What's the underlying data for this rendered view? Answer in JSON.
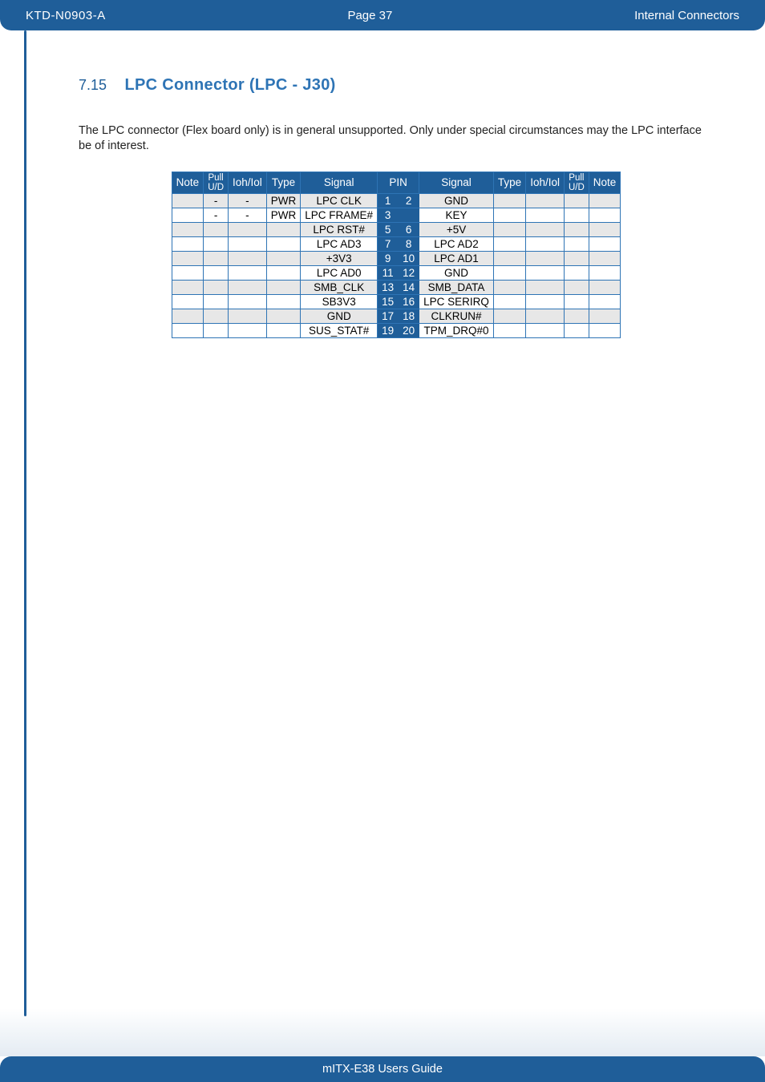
{
  "header": {
    "doc_id": "KTD-N0903-A",
    "page_label": "Page 37",
    "section_title": "Internal Connectors"
  },
  "section": {
    "number": "7.15",
    "title": "LPC Connector (LPC - J30)"
  },
  "body": {
    "text": "The LPC connector (Flex board only) is in general unsupported. Only under special circumstances may the LPC interface be of interest."
  },
  "table": {
    "headers": {
      "note_l": "Note",
      "pull_l_line1": "Pull",
      "pull_l_line2": "U/D",
      "iohiol_l": "Ioh/Iol",
      "type_l": "Type",
      "signal_l": "Signal",
      "pin": "PIN",
      "signal_r": "Signal",
      "type_r": "Type",
      "iohiol_r": "Ioh/Iol",
      "pull_r_line1": "Pull",
      "pull_r_line2": "U/D",
      "note_r": "Note"
    },
    "rows": [
      {
        "note_l": "",
        "pull_l": "-",
        "ioh_l": "-",
        "type_l": "PWR",
        "sig_l": "LPC CLK",
        "pin_l": "1",
        "pin_r": "2",
        "sig_r": "GND",
        "type_r": "",
        "ioh_r": "",
        "pull_r": "",
        "note_r": ""
      },
      {
        "note_l": "",
        "pull_l": "-",
        "ioh_l": "-",
        "type_l": "PWR",
        "sig_l": "LPC FRAME#",
        "pin_l": "3",
        "pin_r": "",
        "sig_r": "KEY",
        "type_r": "",
        "ioh_r": "",
        "pull_r": "",
        "note_r": ""
      },
      {
        "note_l": "",
        "pull_l": "",
        "ioh_l": "",
        "type_l": "",
        "sig_l": "LPC RST#",
        "pin_l": "5",
        "pin_r": "6",
        "sig_r": "+5V",
        "type_r": "",
        "ioh_r": "",
        "pull_r": "",
        "note_r": ""
      },
      {
        "note_l": "",
        "pull_l": "",
        "ioh_l": "",
        "type_l": "",
        "sig_l": "LPC AD3",
        "pin_l": "7",
        "pin_r": "8",
        "sig_r": "LPC AD2",
        "type_r": "",
        "ioh_r": "",
        "pull_r": "",
        "note_r": ""
      },
      {
        "note_l": "",
        "pull_l": "",
        "ioh_l": "",
        "type_l": "",
        "sig_l": "+3V3",
        "pin_l": "9",
        "pin_r": "10",
        "sig_r": "LPC AD1",
        "type_r": "",
        "ioh_r": "",
        "pull_r": "",
        "note_r": ""
      },
      {
        "note_l": "",
        "pull_l": "",
        "ioh_l": "",
        "type_l": "",
        "sig_l": "LPC AD0",
        "pin_l": "11",
        "pin_r": "12",
        "sig_r": "GND",
        "type_r": "",
        "ioh_r": "",
        "pull_r": "",
        "note_r": ""
      },
      {
        "note_l": "",
        "pull_l": "",
        "ioh_l": "",
        "type_l": "",
        "sig_l": "SMB_CLK",
        "pin_l": "13",
        "pin_r": "14",
        "sig_r": "SMB_DATA",
        "type_r": "",
        "ioh_r": "",
        "pull_r": "",
        "note_r": ""
      },
      {
        "note_l": "",
        "pull_l": "",
        "ioh_l": "",
        "type_l": "",
        "sig_l": "SB3V3",
        "pin_l": "15",
        "pin_r": "16",
        "sig_r": "LPC SERIRQ",
        "type_r": "",
        "ioh_r": "",
        "pull_r": "",
        "note_r": ""
      },
      {
        "note_l": "",
        "pull_l": "",
        "ioh_l": "",
        "type_l": "",
        "sig_l": "GND",
        "pin_l": "17",
        "pin_r": "18",
        "sig_r": "CLKRUN#",
        "type_r": "",
        "ioh_r": "",
        "pull_r": "",
        "note_r": ""
      },
      {
        "note_l": "",
        "pull_l": "",
        "ioh_l": "",
        "type_l": "",
        "sig_l": "SUS_STAT#",
        "pin_l": "19",
        "pin_r": "20",
        "sig_r": "TPM_DRQ#0",
        "type_r": "",
        "ioh_r": "",
        "pull_r": "",
        "note_r": ""
      }
    ]
  },
  "footer": {
    "text": "mITX-E38 Users Guide"
  },
  "colors": {
    "brand": "#1f5e99",
    "accent": "#2e74b5",
    "alt_row": "#e7e7e7"
  }
}
